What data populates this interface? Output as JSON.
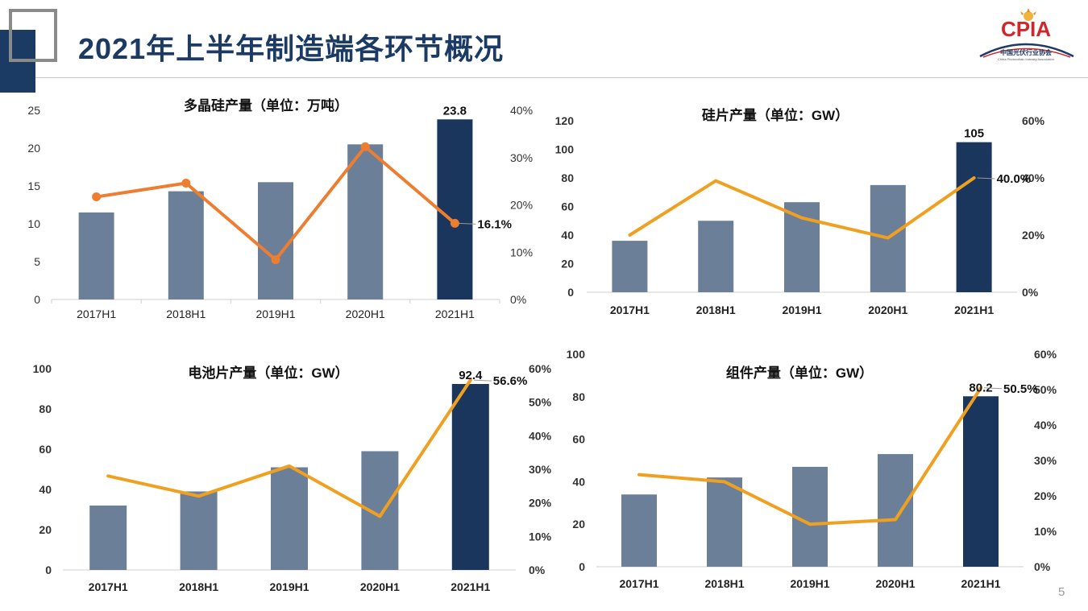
{
  "slide": {
    "title": "2021年上半年制造端各环节概况",
    "page_number": "5",
    "logo": {
      "text": "CPIA",
      "subtitle": "中国光伏行业协会",
      "tagline": "China Photovoltaic Industry Association"
    }
  },
  "colors": {
    "navy": "#1b3a64",
    "bar": "#6b7f99",
    "bar_highlight": "#1b365d",
    "line_orange": "#ed7d31",
    "line_gold": "#f0a020",
    "logo_red": "#d1262c"
  },
  "chart_data": [
    {
      "type": "bar",
      "title": "多晶硅产量（单位：万吨）",
      "categories": [
        "2017H1",
        "2018H1",
        "2019H1",
        "2020H1",
        "2021H1"
      ],
      "series": [
        {
          "values": [
            11.5,
            14.3,
            15.5,
            20.5,
            23.8
          ],
          "highlight_last": true
        },
        {
          "type": "line",
          "axis": "right",
          "values": [
            21.7,
            24.6,
            8.4,
            32.3,
            16.1
          ],
          "markers": true
        }
      ],
      "ylim": [
        0,
        25
      ],
      "yticks": [
        0,
        5,
        10,
        15,
        20,
        25
      ],
      "y2lim": [
        0,
        40
      ],
      "y2ticks": [
        "0%",
        "10%",
        "20%",
        "30%",
        "40%"
      ],
      "data_labels": [
        {
          "series": 0,
          "index": 4,
          "text": "23.8"
        },
        {
          "series": 1,
          "index": 4,
          "text": "16.1%"
        }
      ],
      "line_color": "#ed7d31"
    },
    {
      "type": "bar",
      "title": "硅片产量（单位：GW）",
      "categories": [
        "2017H1",
        "2018H1",
        "2019H1",
        "2020H1",
        "2021H1"
      ],
      "series": [
        {
          "values": [
            36,
            50,
            63,
            75,
            105
          ],
          "highlight_last": true
        },
        {
          "type": "line",
          "axis": "right",
          "values": [
            20,
            39,
            26,
            19,
            40
          ],
          "markers": false
        }
      ],
      "ylim": [
        0,
        120
      ],
      "yticks": [
        0,
        20,
        40,
        60,
        80,
        100,
        120
      ],
      "y2lim": [
        0,
        60
      ],
      "y2ticks": [
        "0%",
        "20%",
        "40%",
        "60%"
      ],
      "data_labels": [
        {
          "series": 0,
          "index": 4,
          "text": "105"
        },
        {
          "series": 1,
          "index": 4,
          "text": "40.0%"
        }
      ],
      "line_color": "#f0a020"
    },
    {
      "type": "bar",
      "title": "电池片产量（单位：GW）",
      "categories": [
        "2017H1",
        "2018H1",
        "2019H1",
        "2020H1",
        "2021H1"
      ],
      "series": [
        {
          "values": [
            32,
            39,
            51,
            59,
            92.4
          ],
          "highlight_last": true
        },
        {
          "type": "line",
          "axis": "right",
          "values": [
            28,
            22,
            31,
            16,
            56.6
          ],
          "markers": false
        }
      ],
      "ylim": [
        0,
        100
      ],
      "yticks": [
        0,
        20,
        40,
        60,
        80,
        100
      ],
      "y2lim": [
        0,
        60
      ],
      "y2ticks": [
        "0%",
        "10%",
        "20%",
        "30%",
        "40%",
        "50%",
        "60%"
      ],
      "data_labels": [
        {
          "series": 0,
          "index": 4,
          "text": "92.4"
        },
        {
          "series": 1,
          "index": 4,
          "text": "56.6%"
        }
      ],
      "line_color": "#f0a020"
    },
    {
      "type": "bar",
      "title": "组件产量（单位：GW）",
      "categories": [
        "2017H1",
        "2018H1",
        "2019H1",
        "2020H1",
        "2021H1"
      ],
      "series": [
        {
          "values": [
            34,
            42,
            47,
            53,
            80.2
          ],
          "highlight_last": true
        },
        {
          "type": "line",
          "axis": "right",
          "values": [
            26,
            24,
            12,
            13.3,
            50.5
          ],
          "markers": false
        }
      ],
      "ylim": [
        0,
        100
      ],
      "yticks": [
        0,
        20,
        40,
        60,
        80,
        100
      ],
      "y2lim": [
        0,
        60
      ],
      "y2ticks": [
        "0%",
        "10%",
        "20%",
        "30%",
        "40%",
        "50%",
        "60%"
      ],
      "data_labels": [
        {
          "series": 0,
          "index": 4,
          "text": "80.2"
        },
        {
          "series": 1,
          "index": 4,
          "text": "50.5%"
        }
      ],
      "line_color": "#f0a020"
    }
  ]
}
